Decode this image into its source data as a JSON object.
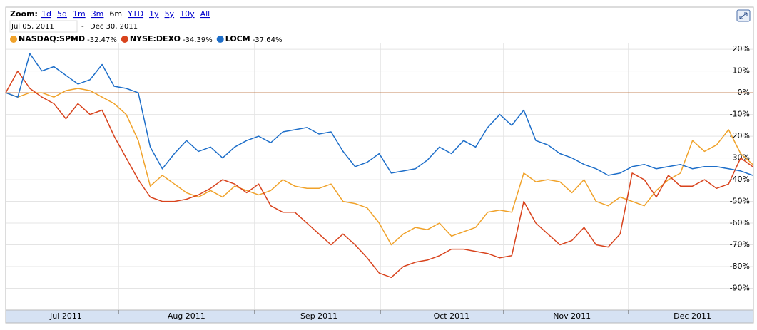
{
  "chart_data": {
    "type": "line",
    "zoom_label": "Zoom:",
    "zoom_options": [
      "1d",
      "5d",
      "1m",
      "3m",
      "6m",
      "YTD",
      "1y",
      "5y",
      "10y",
      "All"
    ],
    "date_start": "Jul 05, 2011",
    "date_separator": "-",
    "date_end": "Dec 30, 2011",
    "categories": [
      null,
      null,
      null,
      null,
      null,
      "Jul 2011",
      null,
      null,
      null,
      null,
      null,
      null,
      null,
      null,
      null,
      "Aug 2011",
      null,
      null,
      null,
      null,
      null,
      null,
      null,
      null,
      null,
      null,
      "Sep 2011",
      null,
      null,
      null,
      null,
      null,
      null,
      null,
      null,
      null,
      null,
      "Oct 2011",
      null,
      null,
      null,
      null,
      null,
      null,
      null,
      null,
      null,
      "Nov 2011",
      null,
      null,
      null,
      null,
      null,
      null,
      null,
      null,
      null,
      "Dec 2011",
      null,
      null,
      null,
      null,
      null
    ],
    "series": [
      {
        "name": "NASDAQ:SPMD",
        "change": "-32.47%",
        "color": "#f0a22a",
        "values": [
          0,
          -2,
          0,
          0,
          -2,
          1,
          2,
          1,
          -2,
          -5,
          -10,
          -22,
          -43,
          -38,
          -42,
          -46,
          -48,
          -45,
          -48,
          -43,
          -45,
          -47,
          -45,
          -40,
          -43,
          -44,
          -44,
          -42,
          -50,
          -51,
          -53,
          -60,
          -70,
          -65,
          -62,
          -63,
          -60,
          -66,
          -64,
          -62,
          -55,
          -54,
          -55,
          -37,
          -41,
          -40,
          -41,
          -46,
          -40,
          -50,
          -52,
          -48,
          -50,
          -52,
          -45,
          -40,
          -37,
          -22,
          -27,
          -24,
          -17,
          -28,
          -33
        ]
      },
      {
        "name": "NYSE:DEXO",
        "change": "-34.39%",
        "color": "#d8431d",
        "values": [
          0,
          10,
          2,
          -2,
          -5,
          -12,
          -5,
          -10,
          -8,
          -20,
          -30,
          -40,
          -48,
          -50,
          -50,
          -49,
          -47,
          -44,
          -40,
          -42,
          -46,
          -42,
          -52,
          -55,
          -55,
          -60,
          -65,
          -70,
          -65,
          -70,
          -76,
          -83,
          -85,
          -80,
          -78,
          -77,
          -75,
          -72,
          -72,
          -73,
          -74,
          -76,
          -75,
          -50,
          -60,
          -65,
          -70,
          -68,
          -62,
          -70,
          -71,
          -65,
          -37,
          -40,
          -48,
          -38,
          -43,
          -43,
          -40,
          -44,
          -42,
          -30,
          -34
        ]
      },
      {
        "name": "LOCM",
        "change": "-37.64%",
        "color": "#1d6ec9",
        "values": [
          0,
          -2,
          18,
          10,
          12,
          8,
          4,
          6,
          13,
          3,
          2,
          0,
          -25,
          -35,
          -28,
          -22,
          -27,
          -25,
          -30,
          -25,
          -22,
          -20,
          -23,
          -18,
          -17,
          -16,
          -19,
          -18,
          -27,
          -34,
          -32,
          -28,
          -37,
          -36,
          -35,
          -31,
          -25,
          -28,
          -22,
          -25,
          -16,
          -10,
          -15,
          -8,
          -22,
          -24,
          -28,
          -30,
          -33,
          -35,
          -38,
          -37,
          -34,
          -33,
          -35,
          -34,
          -33,
          -35,
          -34,
          -34,
          -35,
          -36,
          -38
        ]
      }
    ],
    "ylim": [
      -100,
      23
    ],
    "yticks": [
      {
        "value": 20,
        "label": "20%"
      },
      {
        "value": 10,
        "label": "10%"
      },
      {
        "value": 0,
        "label": "0%"
      },
      {
        "value": -10,
        "label": "-10%"
      },
      {
        "value": -20,
        "label": "-20%"
      },
      {
        "value": -30,
        "label": "-30%"
      },
      {
        "value": -40,
        "label": "-40%"
      },
      {
        "value": -50,
        "label": "-50%"
      },
      {
        "value": -60,
        "label": "-60%"
      },
      {
        "value": -70,
        "label": "-70%"
      },
      {
        "value": -80,
        "label": "-80%"
      },
      {
        "value": -90,
        "label": "-90%"
      }
    ],
    "zero_line_color": "#b5632a",
    "grid": true
  }
}
